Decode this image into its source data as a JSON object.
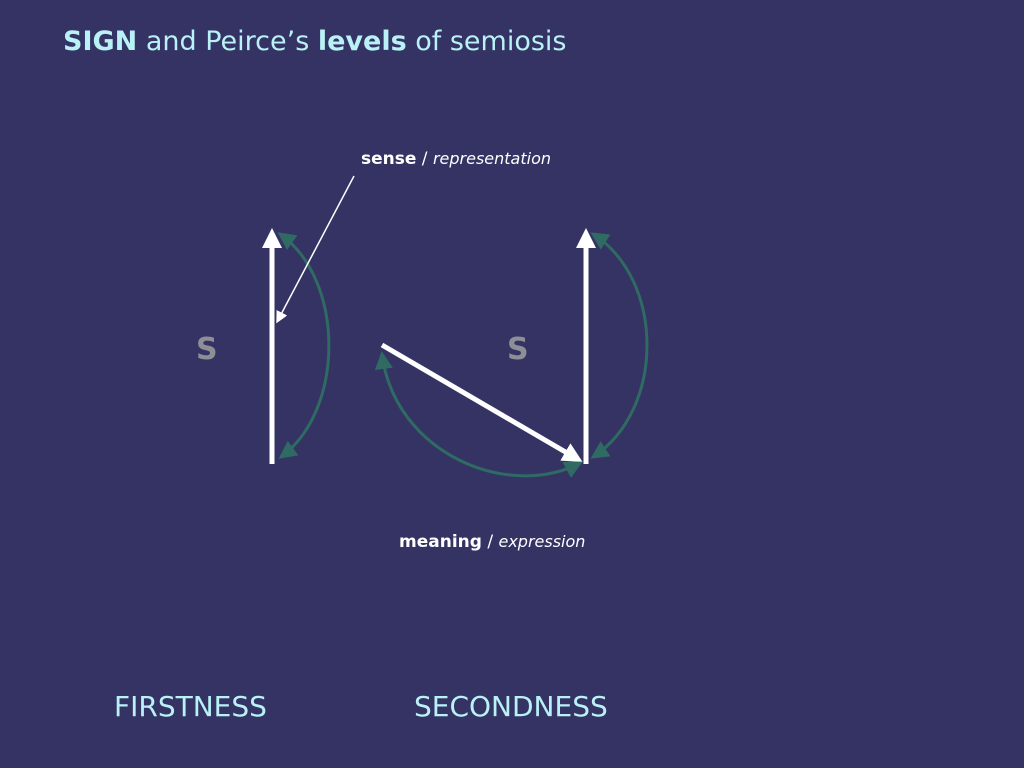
{
  "title": {
    "sign": "SIGN",
    "part1": " and Peirce’s ",
    "levels": "levels",
    "part2": " of semiosis"
  },
  "labels": {
    "sense": "sense",
    "sense_sep": " / ",
    "representation": "representation",
    "meaning": "meaning",
    "meaning_sep": " / ",
    "expression": "expression"
  },
  "s_left": "S",
  "s_right": "S",
  "levels": {
    "firstness": "FIRSTNESS",
    "secondness": "SECONDNESS"
  },
  "colors": {
    "background": "#343364",
    "title": "#b9f1f6",
    "arrow": "#ffffff",
    "curve": "#2f6a63",
    "s_letter": "#8e8e96"
  }
}
